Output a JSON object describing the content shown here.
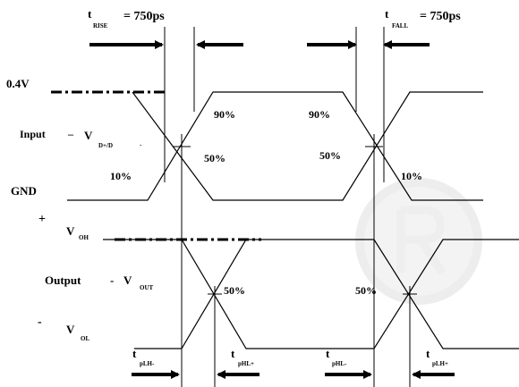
{
  "timing": {
    "rise_label": "t",
    "rise_sub": "RISE",
    "rise_value": "= 750ps",
    "fall_label": "t",
    "fall_sub": "FALL",
    "fall_value": "= 750ps"
  },
  "input": {
    "level_high": "0.4V",
    "name": "Input",
    "dash": "–",
    "v_label": "V",
    "v_sub": "D+/D",
    "v_sub_dash": "-",
    "level_low": "GND",
    "pct_90_left": "90%",
    "pct_90_right": "90%",
    "pct_50_left": "50%",
    "pct_50_right": "50%",
    "pct_10_left": "10%",
    "pct_10_right": "10%"
  },
  "output": {
    "plus": "+",
    "voh_label": "V",
    "voh_sub": "OH",
    "name": "Output",
    "dash": "-",
    "vout_label": "V",
    "vout_sub": "OUT",
    "minus": "-",
    "vol_label": "V",
    "vol_sub": "OL",
    "pct_50_left": "50%",
    "pct_50_right": "50%"
  },
  "propagation": {
    "t": "t",
    "plh_minus": "pLH-",
    "phl_plus": "pHL+",
    "phl_minus": "pHL-",
    "plh_plus": "pLH+"
  }
}
